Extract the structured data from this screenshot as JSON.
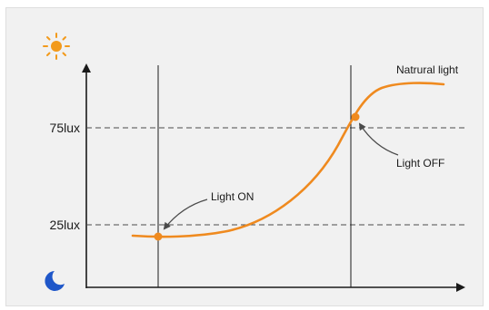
{
  "diagram": {
    "y_ticks": [
      "75lux",
      "25lux"
    ],
    "curve_label": "Natrural light",
    "annotations": {
      "light_on": "Light ON",
      "light_off": "Light OFF"
    },
    "icons": {
      "day": "sun-icon",
      "night": "moon-icon"
    },
    "colors": {
      "curve": "#ef8a1f",
      "axis": "#1a1a1a",
      "dashed": "#4a4a4a",
      "moon": "#1f57c9",
      "sun": "#f29a1c",
      "background": "#f1f1f1"
    }
  }
}
